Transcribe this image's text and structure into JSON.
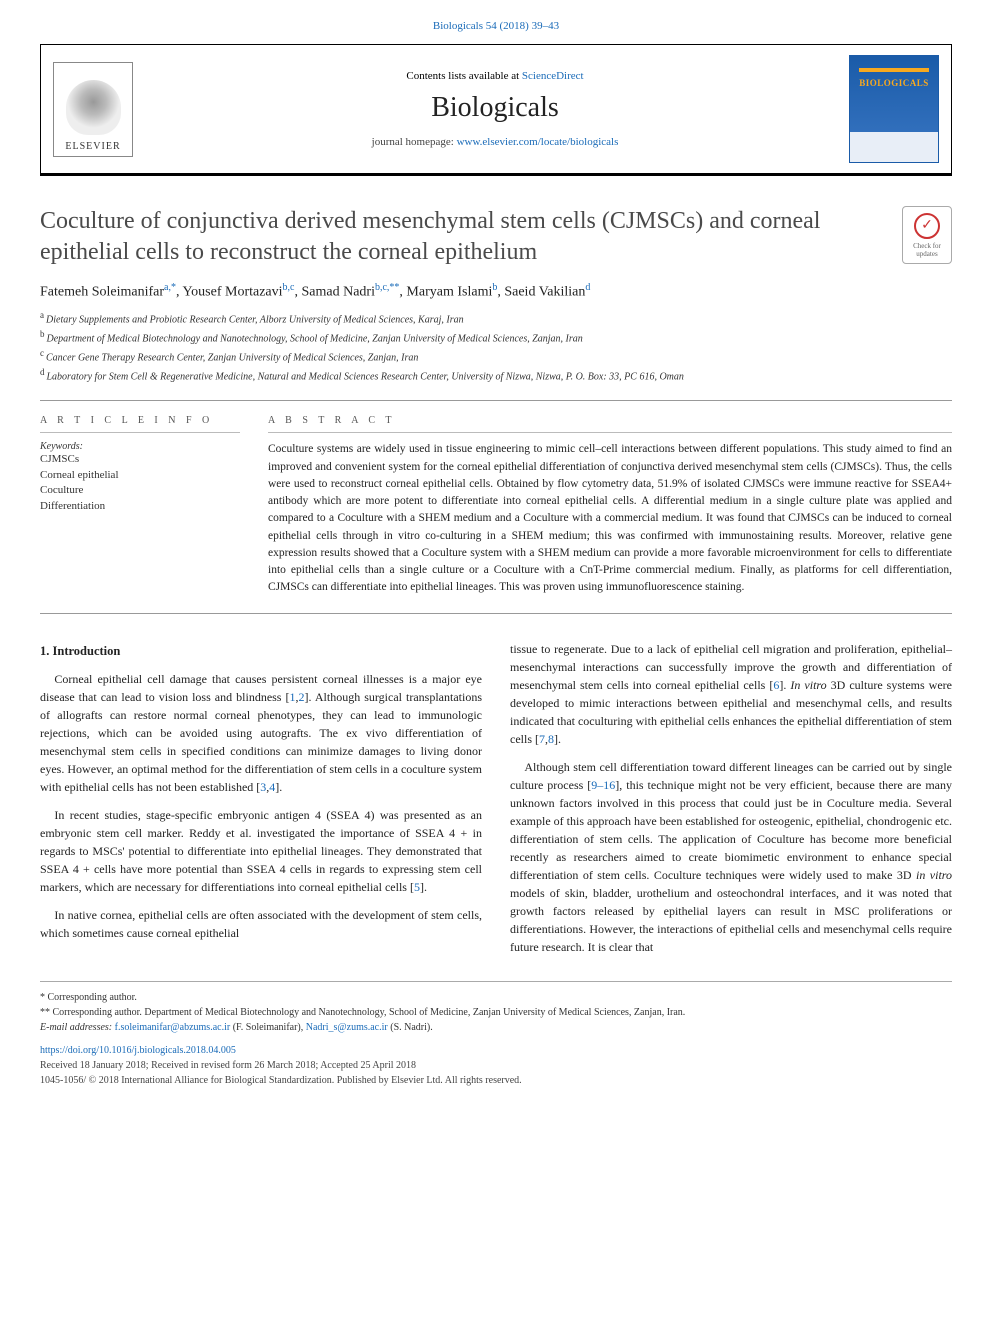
{
  "journal_ref": "Biologicals 54 (2018) 39–43",
  "masthead": {
    "contents_prefix": "Contents lists available at ",
    "contents_link": "ScienceDirect",
    "journal_name": "Biologicals",
    "homepage_prefix": "journal homepage: ",
    "homepage_link": "www.elsevier.com/locate/biologicals",
    "elsevier_label": "ELSEVIER",
    "cover_title": "BIOLOGICALS"
  },
  "updates_badge": {
    "line1": "Check for",
    "line2": "updates",
    "glyph": "✓"
  },
  "article": {
    "title": "Coculture of conjunctiva derived mesenchymal stem cells (CJMSCs) and corneal epithelial cells to reconstruct the corneal epithelium",
    "authors_parts": [
      {
        "name": "Fatemeh Soleimanifar",
        "sup": "a,*"
      },
      {
        "name": ", Yousef Mortazavi",
        "sup": "b,c"
      },
      {
        "name": ", Samad Nadri",
        "sup": "b,c,**"
      },
      {
        "name": ", Maryam Islami",
        "sup": "b"
      },
      {
        "name": ", Saeid Vakilian",
        "sup": "d"
      }
    ],
    "affiliations": [
      {
        "sup": "a",
        "text": "Dietary Supplements and Probiotic Research Center, Alborz University of Medical Sciences, Karaj, Iran"
      },
      {
        "sup": "b",
        "text": "Department of Medical Biotechnology and Nanotechnology, School of Medicine, Zanjan University of Medical Sciences, Zanjan, Iran"
      },
      {
        "sup": "c",
        "text": "Cancer Gene Therapy Research Center, Zanjan University of Medical Sciences, Zanjan, Iran"
      },
      {
        "sup": "d",
        "text": "Laboratory for Stem Cell & Regenerative Medicine, Natural and Medical Sciences Research Center, University of Nizwa, Nizwa, P. O. Box: 33, PC 616, Oman"
      }
    ]
  },
  "info": {
    "label": "A R T I C L E   I N F O",
    "keywords_label": "Keywords:",
    "keywords": [
      "CJMSCs",
      "Corneal epithelial",
      "Coculture",
      "Differentiation"
    ]
  },
  "abstract": {
    "label": "A B S T R A C T",
    "text": "Coculture systems are widely used in tissue engineering to mimic cell–cell interactions between different populations. This study aimed to find an improved and convenient system for the corneal epithelial differentiation of conjunctiva derived mesenchymal stem cells (CJMSCs). Thus, the cells were used to reconstruct corneal epithelial cells. Obtained by flow cytometry data, 51.9% of isolated CJMSCs were immune reactive for SSEA4+ antibody which are more potent to differentiate into corneal epithelial cells. A differential medium in a single culture plate was applied and compared to a Coculture with a SHEM medium and a Coculture with a commercial medium. It was found that CJMSCs can be induced to corneal epithelial cells through in vitro co-culturing in a SHEM medium; this was confirmed with immunostaining results. Moreover, relative gene expression results showed that a Coculture system with a SHEM medium can provide a more favorable microenvironment for cells to differentiate into epithelial cells than a single culture or a Coculture with a CnT-Prime commercial medium. Finally, as platforms for cell differentiation, CJMSCs can differentiate into epithelial lineages. This was proven using immunofluorescence staining."
  },
  "body": {
    "heading": "1. Introduction",
    "p1_a": "Corneal epithelial cell damage that causes persistent corneal illnesses is a major eye disease that can lead to vision loss and blindness [",
    "p1_ref1": "1",
    "p1_mid1": ",",
    "p1_ref2": "2",
    "p1_b": "]. Although surgical transplantations of allografts can restore normal corneal phenotypes, they can lead to immunologic rejections, which can be avoided using autografts. The ex vivo differentiation of mesenchymal stem cells in specified conditions can minimize damages to living donor eyes. However, an optimal method for the differentiation of stem cells in a coculture system with epithelial cells has not been established [",
    "p1_ref3": "3",
    "p1_mid2": ",",
    "p1_ref4": "4",
    "p1_c": "].",
    "p2_a": "In recent studies, stage-specific embryonic antigen 4 (SSEA 4) was presented as an embryonic stem cell marker. Reddy et al. investigated the importance of SSEA 4 + in regards to MSCs' potential to differentiate into epithelial lineages. They demonstrated that SSEA 4 + cells have more potential than SSEA 4 cells in regards to expressing stem cell markers, which are necessary for differentiations into corneal epithelial cells [",
    "p2_ref5": "5",
    "p2_b": "].",
    "p3": "In native cornea, epithelial cells are often associated with the development of stem cells, which sometimes cause corneal epithelial",
    "p4_a": "tissue to regenerate. Due to a lack of epithelial cell migration and proliferation, epithelial–mesenchymal interactions can successfully improve the growth and differentiation of mesenchymal stem cells into corneal epithelial cells [",
    "p4_ref6": "6",
    "p4_b": "]. ",
    "p4_c": "In vitro",
    "p4_d": " 3D culture systems were developed to mimic interactions between epithelial and mesenchymal cells, and results indicated that coculturing with epithelial cells enhances the epithelial differentiation of stem cells [",
    "p4_ref7": "7",
    "p4_mid": ",",
    "p4_ref8": "8",
    "p4_e": "].",
    "p5_a": "Although stem cell differentiation toward different lineages can be carried out by single culture process [",
    "p5_ref9": "9–16",
    "p5_b": "], this technique might not be very efficient, because there are many unknown factors involved in this process that could just be in Coculture media. Several example of this approach have been established for osteogenic, epithelial, chondrogenic etc. differentiation of stem cells. The application of Coculture has become more beneficial recently as researchers aimed to create biomimetic environment to enhance special differentiation of stem cells. Coculture techniques were widely used to make 3D ",
    "p5_c": "in vitro",
    "p5_d": " models of skin, bladder, urothelium and osteochondral interfaces, and it was noted that growth factors released by epithelial layers can result in MSC proliferations or differentiations. However, the interactions of epithelial cells and mesenchymal cells require future research. It is clear that"
  },
  "footer": {
    "corr1": "* Corresponding author.",
    "corr2": "** Corresponding author. Department of Medical Biotechnology and Nanotechnology, School of Medicine, Zanjan University of Medical Sciences, Zanjan, Iran.",
    "email_label": "E-mail addresses: ",
    "email1": "f.soleimanifar@abzums.ac.ir",
    "email1_name": " (F. Soleimanifar), ",
    "email2": "Nadri_s@zums.ac.ir",
    "email2_name": " (S. Nadri).",
    "doi": "https://doi.org/10.1016/j.biologicals.2018.04.005",
    "history": "Received 18 January 2018; Received in revised form 26 March 2018; Accepted 25 April 2018",
    "copyright": "1045-1056/ © 2018 International Alliance for Biological Standardization. Published by Elsevier Ltd. All rights reserved."
  },
  "colors": {
    "link": "#1a6bb8",
    "text": "#222222",
    "rule": "#999999",
    "cover_bg": "#1a5ba8",
    "cover_accent": "#f8a91f"
  },
  "typography": {
    "title_fontsize_pt": 18,
    "body_fontsize_pt": 9,
    "abstract_fontsize_pt": 8.5,
    "affil_fontsize_pt": 7.5,
    "font_family": "serif"
  }
}
